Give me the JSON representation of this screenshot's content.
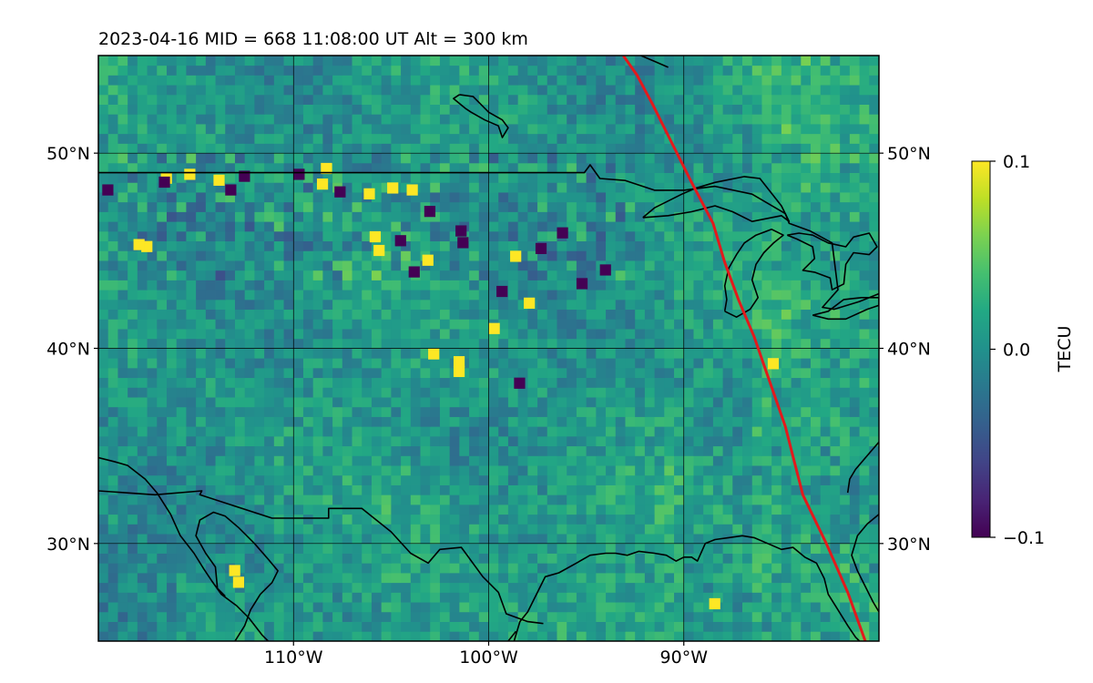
{
  "chart_data": {
    "type": "heatmap",
    "title": "2023-04-16  MID = 668    11:08:00  UT  Alt = 300 km",
    "lon_range": [
      -120,
      -80
    ],
    "lat_range": [
      25,
      55
    ],
    "lon_ticks": [
      {
        "value": -110,
        "label": "110°W"
      },
      {
        "value": -100,
        "label": "100°W"
      },
      {
        "value": -90,
        "label": "90°W"
      }
    ],
    "lat_ticks": [
      {
        "value": 30,
        "label": "30°N"
      },
      {
        "value": 40,
        "label": "40°N"
      },
      {
        "value": 50,
        "label": "50°N"
      }
    ],
    "colorbar": {
      "label": "TECU",
      "range": [
        -0.1,
        0.1
      ],
      "ticks": [
        {
          "value": 0.1,
          "label": "0.1"
        },
        {
          "value": 0.0,
          "label": "0.0"
        },
        {
          "value": -0.1,
          "label": "−0.1"
        }
      ],
      "colormap": "viridis"
    },
    "grid": true,
    "terminator_color": "#e31a1c",
    "terminator_path": [
      [
        -93.1,
        55.0
      ],
      [
        -92.4,
        54.0
      ],
      [
        -91.6,
        52.5
      ],
      [
        -90.6,
        50.5
      ],
      [
        -89.6,
        48.5
      ],
      [
        -88.5,
        46.4
      ],
      [
        -87.9,
        44.4
      ],
      [
        -87.2,
        42.5
      ],
      [
        -86.4,
        40.6
      ],
      [
        -85.6,
        38.3
      ],
      [
        -84.8,
        36.0
      ],
      [
        -83.9,
        32.5
      ],
      [
        -82.7,
        30.0
      ],
      [
        -81.6,
        27.5
      ],
      [
        -80.7,
        25.0
      ]
    ],
    "hotspots": [
      {
        "lon": -113.3,
        "lat": 28.4,
        "value": 0.1
      },
      {
        "lon": -113.1,
        "lat": 27.8,
        "value": 0.1
      },
      {
        "lon": -88.7,
        "lat": 26.7,
        "value": 0.1
      },
      {
        "lon": -100.0,
        "lat": 40.8,
        "value": 0.1
      },
      {
        "lon": -101.8,
        "lat": 39.1,
        "value": 0.1
      },
      {
        "lon": -101.8,
        "lat": 38.6,
        "value": 0.1
      },
      {
        "lon": -103.1,
        "lat": 39.5,
        "value": 0.1
      },
      {
        "lon": -103.4,
        "lat": 44.3,
        "value": 0.1
      },
      {
        "lon": -105.9,
        "lat": 44.8,
        "value": 0.1
      },
      {
        "lon": -106.1,
        "lat": 45.5,
        "value": 0.1
      },
      {
        "lon": -108.8,
        "lat": 48.2,
        "value": 0.1
      },
      {
        "lon": -105.2,
        "lat": 48.0,
        "value": 0.1
      },
      {
        "lon": -106.4,
        "lat": 47.7,
        "value": 0.1
      },
      {
        "lon": -104.2,
        "lat": 47.9,
        "value": 0.1
      },
      {
        "lon": -116.8,
        "lat": 48.5,
        "value": 0.1
      },
      {
        "lon": -98.2,
        "lat": 42.1,
        "value": 0.1
      },
      {
        "lon": -98.9,
        "lat": 44.5,
        "value": 0.1
      },
      {
        "lon": -85.7,
        "lat": 39.0,
        "value": 0.1
      },
      {
        "lon": -117.8,
        "lat": 45.0,
        "value": 0.1
      },
      {
        "lon": -118.2,
        "lat": 45.1,
        "value": 0.1
      },
      {
        "lon": -115.6,
        "lat": 48.7,
        "value": 0.1
      },
      {
        "lon": -114.1,
        "lat": 48.4,
        "value": 0.1
      },
      {
        "lon": -108.6,
        "lat": 49.0,
        "value": 0.1
      }
    ],
    "coldspots": [
      {
        "lon": -116.9,
        "lat": 48.3,
        "value": -0.1
      },
      {
        "lon": -112.8,
        "lat": 48.6,
        "value": -0.1
      },
      {
        "lon": -110.0,
        "lat": 48.7,
        "value": -0.1
      },
      {
        "lon": -101.7,
        "lat": 45.8,
        "value": -0.1
      },
      {
        "lon": -101.6,
        "lat": 45.2,
        "value": -0.1
      },
      {
        "lon": -96.5,
        "lat": 45.7,
        "value": -0.1
      },
      {
        "lon": -94.3,
        "lat": 43.8,
        "value": -0.1
      },
      {
        "lon": -104.8,
        "lat": 45.3,
        "value": -0.1
      },
      {
        "lon": -99.6,
        "lat": 42.7,
        "value": -0.1
      },
      {
        "lon": -119.8,
        "lat": 47.9,
        "value": -0.1
      },
      {
        "lon": -113.5,
        "lat": 47.9,
        "value": -0.1
      },
      {
        "lon": -107.9,
        "lat": 47.8,
        "value": -0.1
      },
      {
        "lon": -103.3,
        "lat": 46.8,
        "value": -0.1
      },
      {
        "lon": -97.6,
        "lat": 44.9,
        "value": -0.1
      },
      {
        "lon": -95.5,
        "lat": 43.1,
        "value": -0.1
      },
      {
        "lon": -98.7,
        "lat": 38.0,
        "value": -0.1
      },
      {
        "lon": -104.1,
        "lat": 43.7,
        "value": -0.1
      }
    ],
    "coastlines": [
      [
        [
          -120,
          34.4
        ],
        [
          -119.2,
          34.2
        ],
        [
          -118.5,
          34.0
        ],
        [
          -117.6,
          33.3
        ],
        [
          -117.0,
          32.6
        ],
        [
          -116.3,
          31.5
        ],
        [
          -115.8,
          30.4
        ],
        [
          -115.1,
          29.5
        ],
        [
          -114.6,
          28.7
        ],
        [
          -114.2,
          28.1
        ],
        [
          -113.7,
          27.4
        ],
        [
          -112.9,
          26.8
        ],
        [
          -112.3,
          26.2
        ],
        [
          -111.6,
          25.3
        ],
        [
          -111.3,
          25.0
        ]
      ],
      [
        [
          -113.0,
          25.0
        ],
        [
          -112.5,
          25.8
        ],
        [
          -112.2,
          26.6
        ],
        [
          -111.7,
          27.4
        ],
        [
          -111.1,
          28.0
        ],
        [
          -110.8,
          28.6
        ],
        [
          -111.3,
          29.2
        ],
        [
          -112.0,
          30.0
        ],
        [
          -112.8,
          30.8
        ],
        [
          -113.5,
          31.4
        ],
        [
          -114.1,
          31.6
        ],
        [
          -114.8,
          31.2
        ],
        [
          -115.0,
          30.4
        ],
        [
          -114.5,
          29.5
        ],
        [
          -114.0,
          28.8
        ],
        [
          -113.9,
          27.7
        ],
        [
          -113.5,
          27.3
        ]
      ],
      [
        [
          -98.7,
          25.0
        ],
        [
          -98.4,
          26.0
        ],
        [
          -98.0,
          26.5
        ],
        [
          -97.5,
          27.5
        ],
        [
          -97.1,
          28.3
        ],
        [
          -96.4,
          28.5
        ],
        [
          -95.5,
          29.0
        ],
        [
          -94.8,
          29.4
        ],
        [
          -94.0,
          29.5
        ],
        [
          -93.5,
          29.5
        ],
        [
          -92.9,
          29.4
        ],
        [
          -92.3,
          29.6
        ],
        [
          -91.5,
          29.5
        ],
        [
          -90.9,
          29.4
        ],
        [
          -90.4,
          29.1
        ],
        [
          -90.0,
          29.3
        ],
        [
          -89.6,
          29.3
        ],
        [
          -89.3,
          29.1
        ],
        [
          -88.9,
          30.0
        ],
        [
          -88.4,
          30.2
        ],
        [
          -87.7,
          30.3
        ],
        [
          -87.0,
          30.4
        ],
        [
          -86.4,
          30.3
        ],
        [
          -85.7,
          30.0
        ],
        [
          -85.0,
          29.7
        ],
        [
          -84.4,
          29.8
        ],
        [
          -83.8,
          29.3
        ],
        [
          -83.2,
          29.0
        ],
        [
          -82.8,
          28.2
        ],
        [
          -82.6,
          27.4
        ],
        [
          -82.1,
          26.6
        ],
        [
          -81.6,
          25.8
        ],
        [
          -81.2,
          25.2
        ],
        [
          -81.0,
          25.0
        ]
      ],
      [
        [
          -80.0,
          31.5
        ],
        [
          -80.6,
          31.0
        ],
        [
          -81.1,
          30.4
        ],
        [
          -81.4,
          29.4
        ],
        [
          -81.1,
          28.6
        ],
        [
          -80.7,
          27.8
        ],
        [
          -80.3,
          27.0
        ],
        [
          -80.0,
          26.5
        ]
      ],
      [
        [
          -80.0,
          35.2
        ],
        [
          -80.6,
          34.5
        ],
        [
          -81.2,
          33.8
        ],
        [
          -81.5,
          33.3
        ],
        [
          -81.6,
          32.6
        ]
      ],
      [
        [
          -92.2,
          55.0
        ],
        [
          -91.5,
          54.7
        ],
        [
          -90.8,
          54.4
        ]
      ],
      [
        [
          -101.5,
          53.0
        ],
        [
          -100.8,
          52.9
        ],
        [
          -100.5,
          52.6
        ],
        [
          -100.0,
          52.1
        ],
        [
          -99.3,
          51.7
        ],
        [
          -99.0,
          51.3
        ],
        [
          -99.3,
          50.8
        ],
        [
          -99.5,
          51.4
        ],
        [
          -100.2,
          51.7
        ],
        [
          -100.9,
          52.1
        ],
        [
          -101.2,
          52.3
        ],
        [
          -101.8,
          52.8
        ],
        [
          -101.5,
          53.0
        ]
      ]
    ],
    "borders": [
      [
        [
          -120,
          49.0
        ],
        [
          -111.0,
          49.0
        ],
        [
          -100.0,
          49.0
        ],
        [
          -95.1,
          49.0
        ],
        [
          -94.8,
          49.4
        ],
        [
          -94.3,
          48.7
        ],
        [
          -93.0,
          48.6
        ],
        [
          -91.5,
          48.1
        ],
        [
          -90.0,
          48.1
        ],
        [
          -89.2,
          48.2
        ],
        [
          -88.4,
          48.3
        ],
        [
          -86.5,
          47.9
        ],
        [
          -84.8,
          46.9
        ],
        [
          -84.6,
          46.4
        ],
        [
          -83.5,
          46.0
        ],
        [
          -82.4,
          45.4
        ],
        [
          -82.1,
          43.0
        ],
        [
          -82.9,
          42.1
        ],
        [
          -82.3,
          42.0
        ],
        [
          -81.0,
          42.4
        ],
        [
          -80.0,
          42.8
        ]
      ],
      [
        [
          -120,
          32.7
        ],
        [
          -117.1,
          32.5
        ],
        [
          -114.7,
          32.7
        ],
        [
          -114.8,
          32.5
        ],
        [
          -111.1,
          31.3
        ],
        [
          -108.2,
          31.3
        ],
        [
          -108.2,
          31.8
        ],
        [
          -106.5,
          31.8
        ],
        [
          -105.0,
          30.6
        ],
        [
          -104.0,
          29.5
        ],
        [
          -103.1,
          29.0
        ],
        [
          -102.5,
          29.7
        ],
        [
          -101.4,
          29.8
        ],
        [
          -100.3,
          28.3
        ],
        [
          -99.5,
          27.5
        ],
        [
          -99.1,
          26.4
        ],
        [
          -98.0,
          26.0
        ],
        [
          -97.2,
          25.9
        ]
      ],
      [
        [
          -99.0,
          25.0
        ],
        [
          -98.6,
          25.5
        ]
      ]
    ],
    "lakes": [
      [
        [
          -92.1,
          46.7
        ],
        [
          -90.8,
          46.8
        ],
        [
          -89.6,
          47.0
        ],
        [
          -88.4,
          47.3
        ],
        [
          -87.5,
          47.0
        ],
        [
          -86.5,
          46.5
        ],
        [
          -85.0,
          46.8
        ],
        [
          -84.6,
          46.5
        ],
        [
          -85.0,
          47.3
        ],
        [
          -86.1,
          48.7
        ],
        [
          -86.9,
          48.8
        ],
        [
          -88.4,
          48.5
        ],
        [
          -89.4,
          48.2
        ],
        [
          -90.1,
          47.9
        ],
        [
          -91.5,
          47.2
        ],
        [
          -92.1,
          46.7
        ]
      ],
      [
        [
          -87.9,
          41.9
        ],
        [
          -87.8,
          42.5
        ],
        [
          -87.9,
          43.2
        ],
        [
          -87.7,
          44.1
        ],
        [
          -87.3,
          44.8
        ],
        [
          -86.9,
          45.4
        ],
        [
          -86.3,
          45.8
        ],
        [
          -85.5,
          46.1
        ],
        [
          -84.9,
          45.8
        ],
        [
          -85.4,
          45.4
        ],
        [
          -85.9,
          44.9
        ],
        [
          -86.3,
          44.3
        ],
        [
          -86.5,
          43.5
        ],
        [
          -86.2,
          42.6
        ],
        [
          -86.6,
          42.0
        ],
        [
          -87.3,
          41.6
        ],
        [
          -87.9,
          41.9
        ]
      ],
      [
        [
          -84.7,
          45.8
        ],
        [
          -84.1,
          45.9
        ],
        [
          -83.4,
          45.8
        ],
        [
          -82.6,
          45.4
        ],
        [
          -81.7,
          45.2
        ],
        [
          -81.3,
          45.7
        ],
        [
          -80.5,
          45.9
        ],
        [
          -80.1,
          45.2
        ],
        [
          -80.5,
          44.8
        ],
        [
          -81.3,
          44.9
        ],
        [
          -81.7,
          44.3
        ],
        [
          -81.8,
          43.3
        ],
        [
          -82.4,
          43.0
        ],
        [
          -82.5,
          43.6
        ],
        [
          -83.3,
          43.9
        ],
        [
          -83.9,
          44.0
        ],
        [
          -83.3,
          44.6
        ],
        [
          -83.4,
          45.2
        ],
        [
          -84.2,
          45.6
        ],
        [
          -84.7,
          45.8
        ]
      ],
      [
        [
          -83.4,
          41.7
        ],
        [
          -82.6,
          41.5
        ],
        [
          -81.7,
          41.5
        ],
        [
          -80.6,
          42.0
        ],
        [
          -80.0,
          42.2
        ],
        [
          -80.0,
          42.6
        ],
        [
          -80.9,
          42.6
        ],
        [
          -81.8,
          42.5
        ],
        [
          -82.6,
          41.9
        ],
        [
          -83.4,
          41.7
        ]
      ]
    ]
  }
}
